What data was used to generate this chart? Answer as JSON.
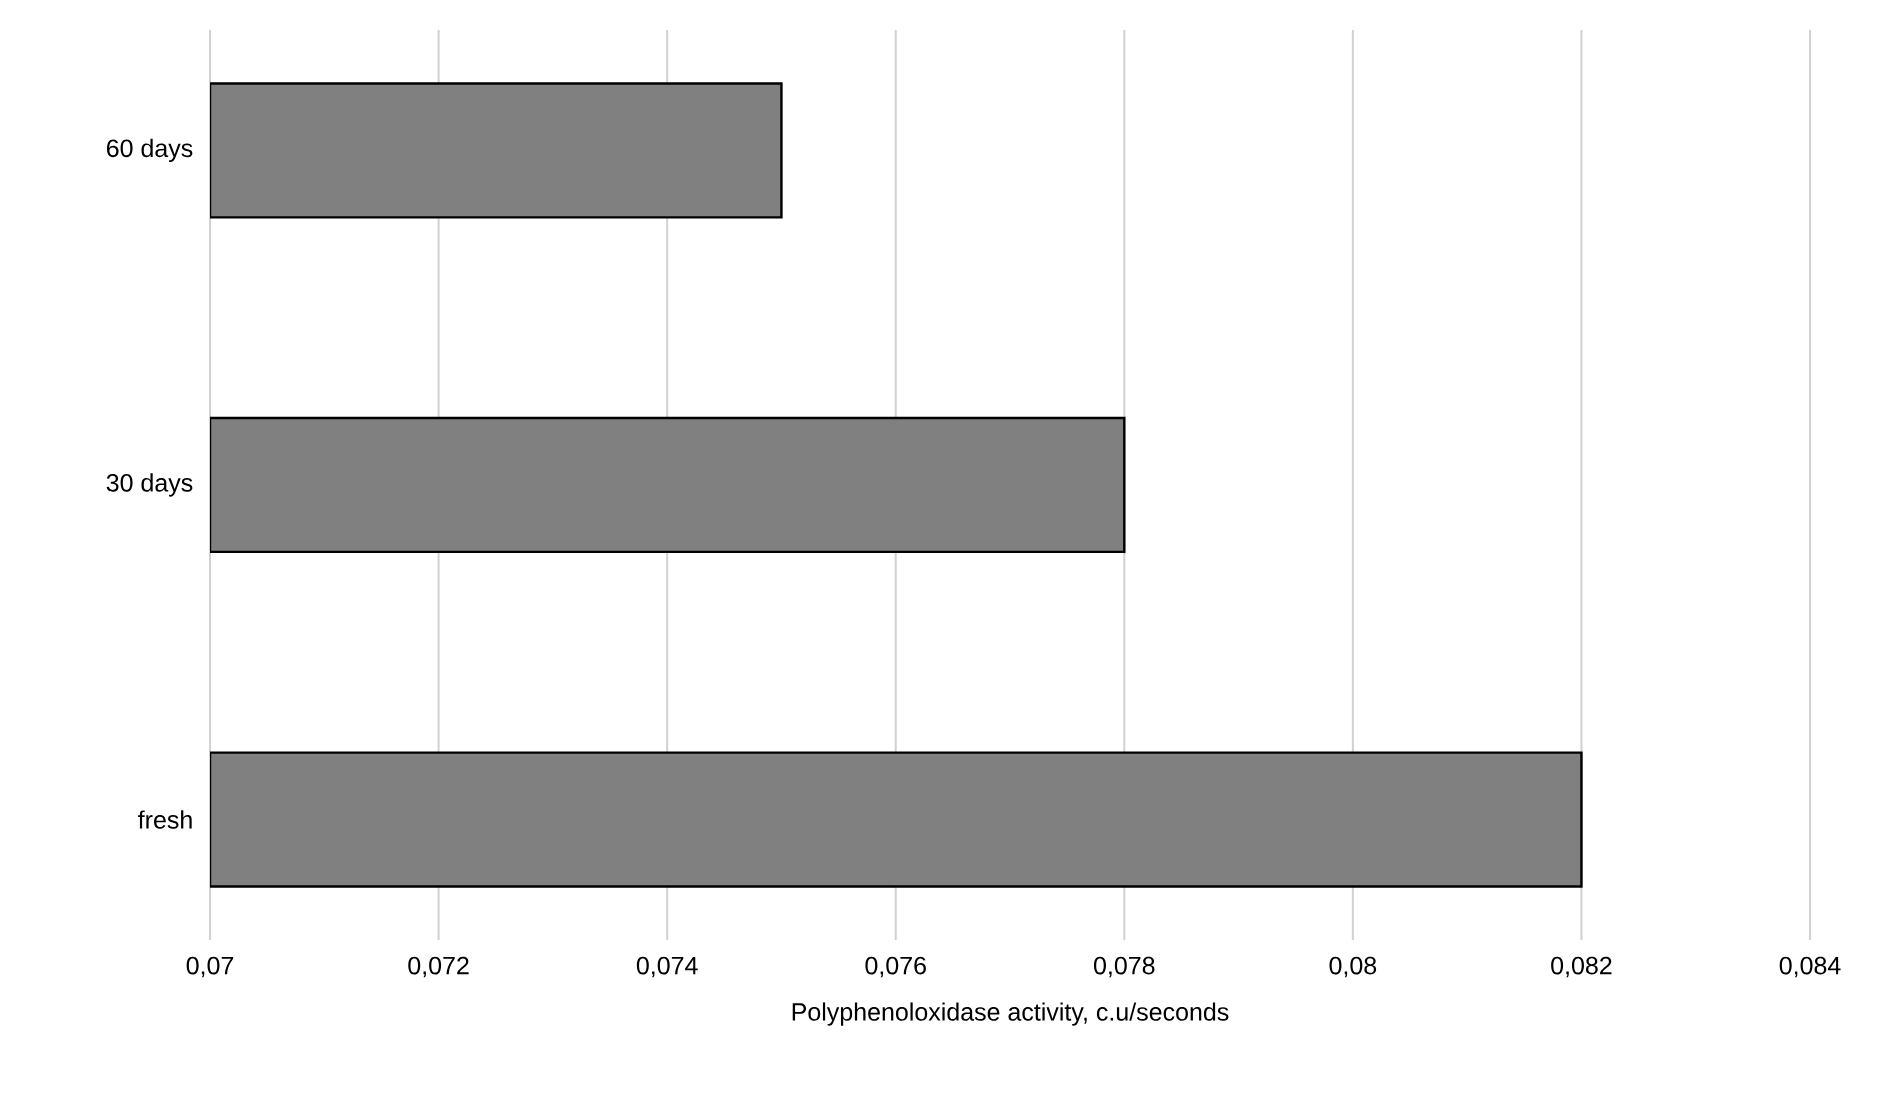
{
  "chart_data": {
    "type": "bar",
    "orientation": "horizontal",
    "xlabel": "Polyphenoloxidase activity, c.u/seconds",
    "categories": [
      "60 days",
      "30 days",
      "fresh"
    ],
    "values": [
      0.075,
      0.078,
      0.082
    ],
    "colors": [
      "#808080",
      "#808080",
      "#808080"
    ],
    "xlim": [
      0.07,
      0.084
    ],
    "xticks": [
      {
        "value": 0.07,
        "label": "0,07"
      },
      {
        "value": 0.072,
        "label": "0,072"
      },
      {
        "value": 0.074,
        "label": "0,074"
      },
      {
        "value": 0.076,
        "label": "0,076"
      },
      {
        "value": 0.078,
        "label": "0,078"
      },
      {
        "value": 0.08,
        "label": "0,08"
      },
      {
        "value": 0.082,
        "label": "0,082"
      },
      {
        "value": 0.084,
        "label": "0,084"
      }
    ],
    "grid": "x"
  }
}
